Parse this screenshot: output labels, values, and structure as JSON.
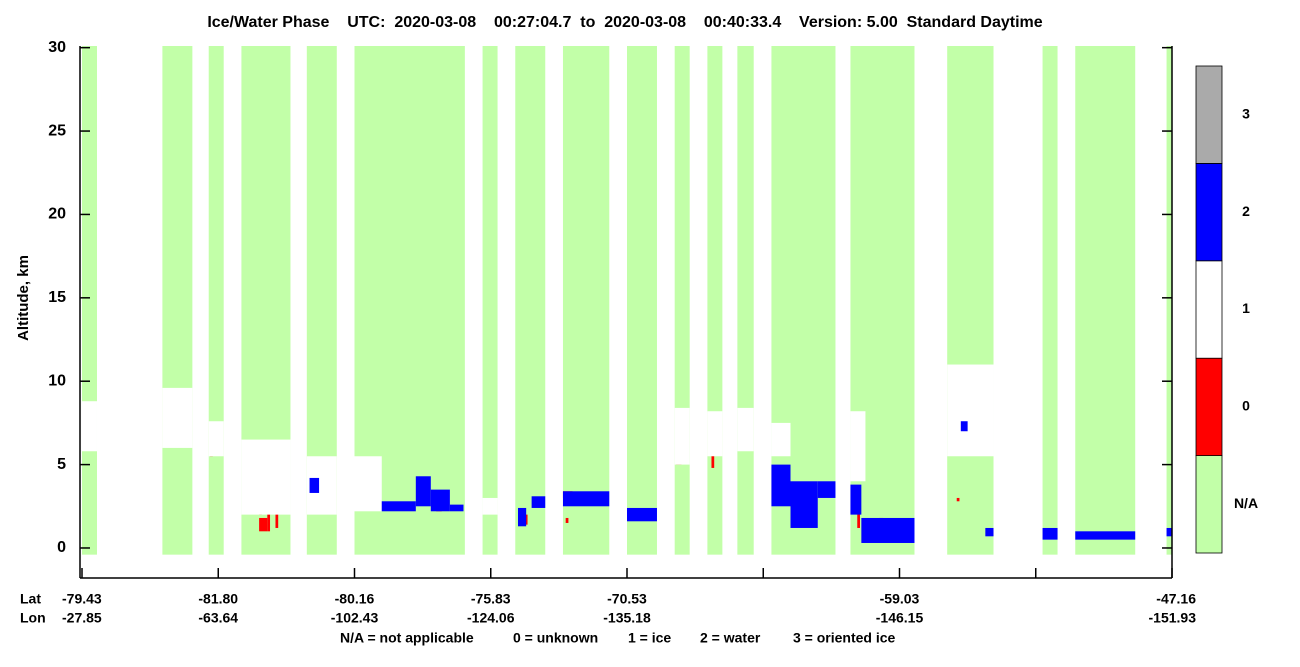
{
  "chart_data": {
    "type": "curtain",
    "title": "Ice/Water Phase    UTC:  2020-03-08    00:27:04.7  to  2020-03-08    00:40:33.4    Version: 5.00  Standard Daytime",
    "ylabel": "Altitude, km",
    "ylim": [
      -1.8,
      30.1
    ],
    "yticks": [
      0,
      5,
      10,
      15,
      20,
      25,
      30
    ],
    "xlim": [
      0,
      8
    ],
    "xrow_labels": [
      "Lat",
      "Lon"
    ],
    "xticks": [
      {
        "value": 0,
        "lat": "-79.43",
        "lon": "-27.85"
      },
      {
        "value": 1,
        "lat": "-81.80",
        "lon": "-63.64"
      },
      {
        "value": 2,
        "lat": "-80.16",
        "lon": "-102.43"
      },
      {
        "value": 3,
        "lat": "-75.83",
        "lon": "-124.06"
      },
      {
        "value": 4,
        "lat": "-70.53",
        "lon": "-135.18"
      },
      {
        "value": 5
      },
      {
        "value": 6,
        "lat": "-59.03",
        "lon": "-146.15"
      },
      {
        "value": 7
      },
      {
        "value": 8,
        "lat": "-47.16",
        "lon": "-151.93"
      }
    ],
    "key": [
      "N/A = not applicable",
      "0 = unknown",
      "1 = ice",
      "2 = water",
      "3 = oriented ice"
    ],
    "series": [
      {
        "name": "N/A",
        "color": "#c2ffa8",
        "rects": [
          [
            0,
            0.11,
            -0.4,
            30.1
          ],
          [
            0.59,
            0.81,
            -0.4,
            30.1
          ],
          [
            0.93,
            1.04,
            -0.4,
            30.1
          ],
          [
            1.17,
            1.53,
            -0.4,
            30.1
          ],
          [
            1.65,
            1.87,
            -0.4,
            30.1
          ],
          [
            2.0,
            2.81,
            -0.4,
            30.1
          ],
          [
            2.94,
            3.05,
            -0.4,
            30.1
          ],
          [
            3.18,
            3.4,
            -0.4,
            30.1
          ],
          [
            3.53,
            3.87,
            -0.4,
            30.1
          ],
          [
            4.0,
            4.22,
            -0.4,
            30.1
          ],
          [
            4.35,
            4.46,
            -0.4,
            30.1
          ],
          [
            4.59,
            4.7,
            -0.4,
            30.1
          ],
          [
            4.81,
            4.93,
            -0.4,
            30.1
          ],
          [
            5.06,
            5.53,
            -0.4,
            30.1
          ],
          [
            5.64,
            6.11,
            -0.4,
            30.1
          ],
          [
            6.35,
            6.69,
            -0.4,
            30.1
          ],
          [
            7.05,
            7.16,
            -0.4,
            30.1
          ],
          [
            7.29,
            7.73,
            -0.4,
            30.1
          ],
          [
            7.96,
            8.0,
            -0.4,
            30.1
          ]
        ]
      },
      {
        "name": "0",
        "color": "#ff0000",
        "rects": [
          [
            0.94,
            0.96,
            5.5,
            6.2
          ],
          [
            1.2,
            1.22,
            3.5,
            6.0
          ],
          [
            1.3,
            1.32,
            2.0,
            5.5
          ],
          [
            1.36,
            1.38,
            1.0,
            4.5
          ],
          [
            1.42,
            1.44,
            1.2,
            5.8
          ],
          [
            1.47,
            1.49,
            2.5,
            5.0
          ],
          [
            1.3,
            1.36,
            1.0,
            1.8
          ],
          [
            1.68,
            1.72,
            3.0,
            3.6
          ],
          [
            2.05,
            2.12,
            4.5,
            5.2
          ],
          [
            2.6,
            2.64,
            2.2,
            2.8
          ],
          [
            2.95,
            2.99,
            2.2,
            2.8
          ],
          [
            3.25,
            3.27,
            1.4,
            2.0
          ],
          [
            3.53,
            3.6,
            3.0,
            3.4
          ],
          [
            3.55,
            3.57,
            1.5,
            1.8
          ],
          [
            4.36,
            4.4,
            5.0,
            6.5
          ],
          [
            4.62,
            4.64,
            4.8,
            6.2
          ],
          [
            4.85,
            4.88,
            6.2,
            7.2
          ],
          [
            5.1,
            5.14,
            5.8,
            7.2
          ],
          [
            5.69,
            5.71,
            1.2,
            3.2
          ],
          [
            5.85,
            5.88,
            1.0,
            1.8
          ],
          [
            6.4,
            6.43,
            6.2,
            7.2
          ],
          [
            6.48,
            6.51,
            6.0,
            8.4
          ],
          [
            6.58,
            6.61,
            6.5,
            8.0
          ],
          [
            6.42,
            6.44,
            2.8,
            3.0
          ]
        ]
      },
      {
        "name": "1",
        "color": "#ffffff",
        "rects": [
          [
            0,
            0.11,
            5.8,
            8.8
          ],
          [
            0.59,
            0.81,
            6.0,
            9.6
          ],
          [
            0.93,
            1.04,
            5.5,
            7.6
          ],
          [
            1.17,
            1.53,
            2.0,
            6.5
          ],
          [
            1.65,
            1.87,
            2.0,
            5.5
          ],
          [
            2.0,
            2.2,
            2.2,
            5.5
          ],
          [
            2.94,
            3.05,
            2.0,
            3.0
          ],
          [
            4.35,
            4.46,
            5.0,
            8.4
          ],
          [
            4.59,
            4.7,
            5.5,
            8.2
          ],
          [
            4.81,
            4.93,
            5.8,
            8.4
          ],
          [
            5.06,
            5.2,
            5.5,
            7.5
          ],
          [
            5.64,
            5.75,
            4.0,
            8.2
          ],
          [
            6.35,
            6.69,
            5.5,
            11.0
          ]
        ]
      },
      {
        "name": "2",
        "color": "#0000ff",
        "rects": [
          [
            1.67,
            1.74,
            3.3,
            4.2
          ],
          [
            2.2,
            2.45,
            2.2,
            2.8
          ],
          [
            2.45,
            2.56,
            2.5,
            4.3
          ],
          [
            2.56,
            2.7,
            2.2,
            3.5
          ],
          [
            2.7,
            2.8,
            2.2,
            2.6
          ],
          [
            3.2,
            3.26,
            1.3,
            2.4
          ],
          [
            3.3,
            3.4,
            2.4,
            3.1
          ],
          [
            3.53,
            3.87,
            2.5,
            3.4
          ],
          [
            4.0,
            4.22,
            1.6,
            2.4
          ],
          [
            5.06,
            5.2,
            2.5,
            5.0
          ],
          [
            5.2,
            5.4,
            1.2,
            4.0
          ],
          [
            5.4,
            5.53,
            3.0,
            4.0
          ],
          [
            5.64,
            5.72,
            2.0,
            3.8
          ],
          [
            5.72,
            6.11,
            0.3,
            1.8
          ],
          [
            6.45,
            6.5,
            7.0,
            7.6
          ],
          [
            6.63,
            6.69,
            0.7,
            1.2
          ],
          [
            7.05,
            7.16,
            0.5,
            1.2
          ],
          [
            7.29,
            7.73,
            0.5,
            1.0
          ],
          [
            7.96,
            8.0,
            0.7,
            1.2
          ]
        ]
      },
      {
        "name": "3",
        "color": "#aaaaaa",
        "rects": []
      }
    ]
  }
}
